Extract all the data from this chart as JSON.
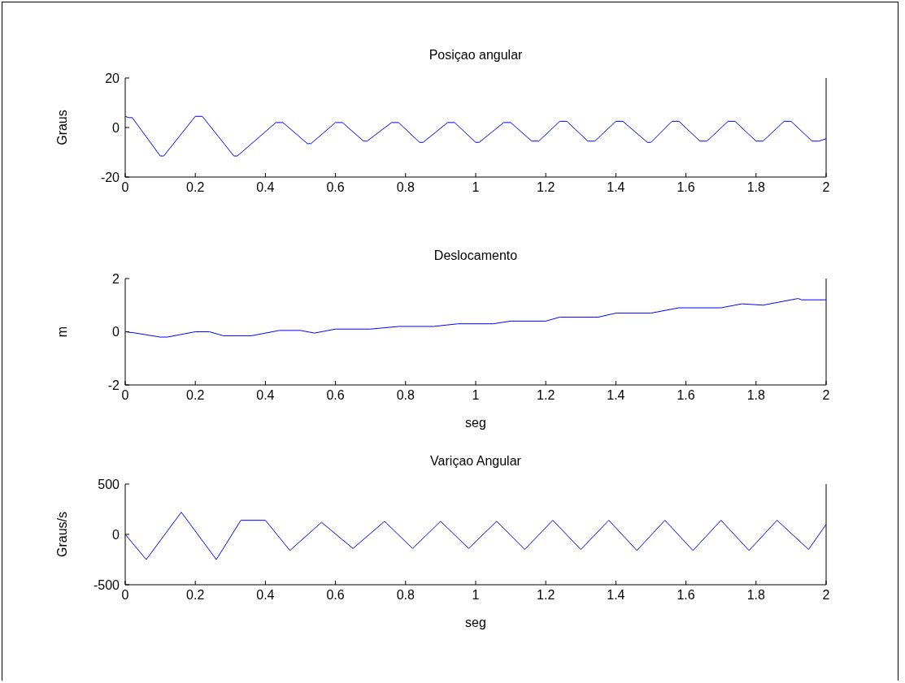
{
  "chart_data": [
    {
      "type": "line",
      "title": "Posiçao angular",
      "ylabel": "Graus",
      "xlim": [
        0,
        2
      ],
      "xticks": [
        0,
        0.2,
        0.4,
        0.6,
        0.8,
        1,
        1.2,
        1.4,
        1.6,
        1.8,
        2
      ],
      "ylim": [
        -20,
        20
      ],
      "yticks": [
        -20,
        0,
        20
      ],
      "grid": false,
      "x": [
        0,
        0.01,
        0.02,
        0.1,
        0.11,
        0.2,
        0.22,
        0.31,
        0.32,
        0.43,
        0.45,
        0.52,
        0.53,
        0.6,
        0.62,
        0.68,
        0.69,
        0.76,
        0.78,
        0.84,
        0.85,
        0.92,
        0.94,
        1.0,
        1.01,
        1.08,
        1.1,
        1.16,
        1.18,
        1.24,
        1.26,
        1.32,
        1.34,
        1.4,
        1.42,
        1.49,
        1.5,
        1.56,
        1.58,
        1.64,
        1.66,
        1.72,
        1.74,
        1.8,
        1.82,
        1.88,
        1.9,
        1.96,
        1.98,
        2
      ],
      "series": [
        {
          "color": "#0000ff",
          "values": [
            4.5,
            4,
            4,
            -11.5,
            -11.5,
            4.5,
            4.5,
            -11.5,
            -11.5,
            2,
            2,
            -6.5,
            -6.5,
            2,
            2,
            -5.5,
            -5.5,
            2,
            2,
            -6,
            -6,
            2,
            2,
            -6,
            -6,
            2,
            2,
            -5.5,
            -5.5,
            2.5,
            2.5,
            -5.5,
            -5.5,
            2.5,
            2.5,
            -6,
            -6,
            2.5,
            2.5,
            -5.5,
            -5.5,
            2.5,
            2.5,
            -5.5,
            -5.5,
            2.5,
            2.5,
            -5.5,
            -5.5,
            -4.5
          ]
        }
      ]
    },
    {
      "type": "line",
      "title": "Deslocamento",
      "ylabel": "m",
      "xlabel": "seg",
      "xlim": [
        0,
        2
      ],
      "xticks": [
        0,
        0.2,
        0.4,
        0.6,
        0.8,
        1,
        1.2,
        1.4,
        1.6,
        1.8,
        2
      ],
      "ylim": [
        -2,
        2
      ],
      "yticks": [
        -2,
        0,
        2
      ],
      "grid": false,
      "x": [
        0,
        0.03,
        0.1,
        0.12,
        0.2,
        0.24,
        0.28,
        0.36,
        0.44,
        0.5,
        0.54,
        0.6,
        0.7,
        0.78,
        0.88,
        0.95,
        1.05,
        1.1,
        1.2,
        1.24,
        1.35,
        1.4,
        1.5,
        1.58,
        1.7,
        1.76,
        1.82,
        1.9,
        1.92,
        1.93,
        2
      ],
      "series": [
        {
          "color": "#0000ff",
          "values": [
            0,
            -0.05,
            -0.2,
            -0.2,
            0,
            0,
            -0.15,
            -0.15,
            0.05,
            0.05,
            -0.05,
            0.1,
            0.1,
            0.2,
            0.2,
            0.3,
            0.3,
            0.4,
            0.4,
            0.55,
            0.55,
            0.7,
            0.7,
            0.9,
            0.9,
            1.05,
            1,
            1.2,
            1.25,
            1.2,
            1.2
          ]
        }
      ]
    },
    {
      "type": "line",
      "title": "Variçao Angular",
      "ylabel": "Graus/s",
      "xlabel": "seg",
      "xlim": [
        0,
        2
      ],
      "xticks": [
        0,
        0.2,
        0.4,
        0.6,
        0.8,
        1,
        1.2,
        1.4,
        1.6,
        1.8,
        2
      ],
      "ylim": [
        -500,
        500
      ],
      "yticks": [
        -500,
        0,
        500
      ],
      "grid": false,
      "x": [
        0,
        0.06,
        0.16,
        0.26,
        0.33,
        0.4,
        0.47,
        0.56,
        0.65,
        0.74,
        0.82,
        0.9,
        0.98,
        1.06,
        1.14,
        1.22,
        1.3,
        1.38,
        1.46,
        1.54,
        1.62,
        1.7,
        1.78,
        1.86,
        1.95,
        2
      ],
      "series": [
        {
          "color": "#0000ff",
          "values": [
            0,
            -250,
            220,
            -250,
            140,
            140,
            -160,
            120,
            -140,
            130,
            -140,
            130,
            -140,
            130,
            -150,
            140,
            -150,
            140,
            -160,
            140,
            -160,
            140,
            -160,
            140,
            -150,
            100
          ]
        }
      ]
    }
  ]
}
